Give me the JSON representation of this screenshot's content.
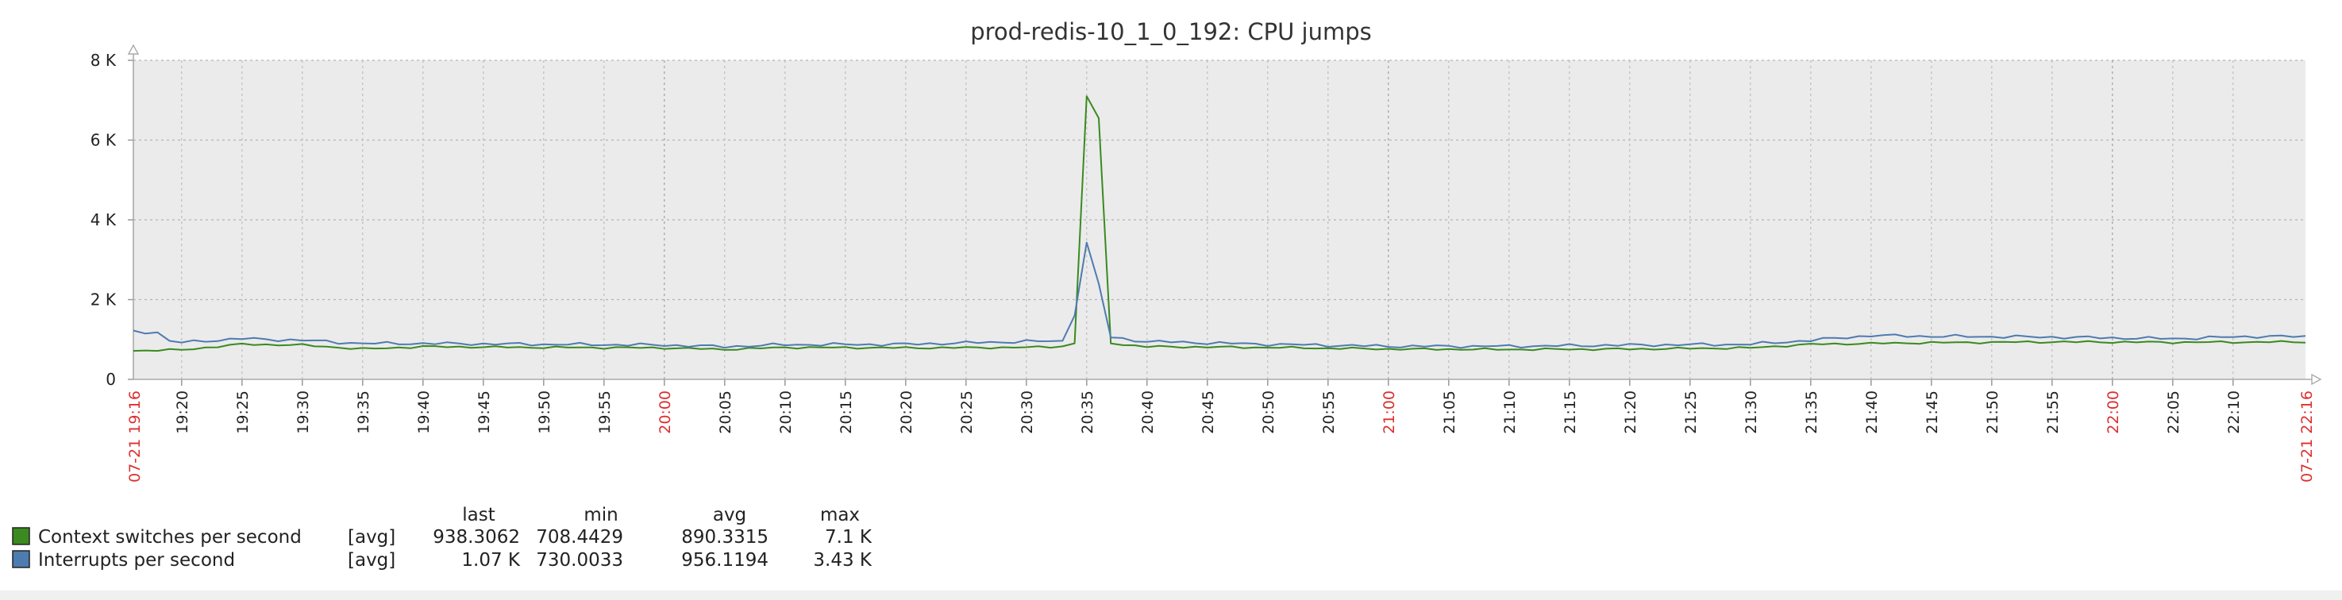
{
  "chart_data": {
    "type": "line",
    "title": "prod-redis-10_1_0_192: CPU jumps",
    "y_axis": {
      "min": 0,
      "max": 8000,
      "ticks": [
        {
          "value": 0,
          "label": "0"
        },
        {
          "value": 2000,
          "label": "2 K"
        },
        {
          "value": 4000,
          "label": "4 K"
        },
        {
          "value": 6000,
          "label": "6 K"
        },
        {
          "value": 8000,
          "label": "8 K"
        }
      ]
    },
    "x_axis": {
      "start": "07-21 19:16",
      "end": "07-21 22:16",
      "start_label": "07-21 19:16",
      "end_label": "07-21 22:16",
      "ticks": [
        {
          "time": "19:20",
          "label": "19:20",
          "highlight": false
        },
        {
          "time": "19:25",
          "label": "19:25",
          "highlight": false
        },
        {
          "time": "19:30",
          "label": "19:30",
          "highlight": false
        },
        {
          "time": "19:35",
          "label": "19:35",
          "highlight": false
        },
        {
          "time": "19:40",
          "label": "19:40",
          "highlight": false
        },
        {
          "time": "19:45",
          "label": "19:45",
          "highlight": false
        },
        {
          "time": "19:50",
          "label": "19:50",
          "highlight": false
        },
        {
          "time": "19:55",
          "label": "19:55",
          "highlight": false
        },
        {
          "time": "20:00",
          "label": "20:00",
          "highlight": true
        },
        {
          "time": "20:05",
          "label": "20:05",
          "highlight": false
        },
        {
          "time": "20:10",
          "label": "20:10",
          "highlight": false
        },
        {
          "time": "20:15",
          "label": "20:15",
          "highlight": false
        },
        {
          "time": "20:20",
          "label": "20:20",
          "highlight": false
        },
        {
          "time": "20:25",
          "label": "20:25",
          "highlight": false
        },
        {
          "time": "20:30",
          "label": "20:30",
          "highlight": false
        },
        {
          "time": "20:35",
          "label": "20:35",
          "highlight": false
        },
        {
          "time": "20:40",
          "label": "20:40",
          "highlight": false
        },
        {
          "time": "20:45",
          "label": "20:45",
          "highlight": false
        },
        {
          "time": "20:50",
          "label": "20:50",
          "highlight": false
        },
        {
          "time": "20:55",
          "label": "20:55",
          "highlight": false
        },
        {
          "time": "21:00",
          "label": "21:00",
          "highlight": true
        },
        {
          "time": "21:05",
          "label": "21:05",
          "highlight": false
        },
        {
          "time": "21:10",
          "label": "21:10",
          "highlight": false
        },
        {
          "time": "21:15",
          "label": "21:15",
          "highlight": false
        },
        {
          "time": "21:20",
          "label": "21:20",
          "highlight": false
        },
        {
          "time": "21:25",
          "label": "21:25",
          "highlight": false
        },
        {
          "time": "21:30",
          "label": "21:30",
          "highlight": false
        },
        {
          "time": "21:35",
          "label": "21:35",
          "highlight": false
        },
        {
          "time": "21:40",
          "label": "21:40",
          "highlight": false
        },
        {
          "time": "21:45",
          "label": "21:45",
          "highlight": false
        },
        {
          "time": "21:50",
          "label": "21:50",
          "highlight": false
        },
        {
          "time": "21:55",
          "label": "21:55",
          "highlight": false
        },
        {
          "time": "22:00",
          "label": "22:00",
          "highlight": true
        },
        {
          "time": "22:05",
          "label": "22:05",
          "highlight": false
        },
        {
          "time": "22:10",
          "label": "22:10",
          "highlight": false
        }
      ]
    },
    "grid": true,
    "series": [
      {
        "name": "Context switches per second",
        "color": "#3a8a1f",
        "keypoints": [
          {
            "t": "19:16",
            "v": 720
          },
          {
            "t": "19:20",
            "v": 740
          },
          {
            "t": "19:25",
            "v": 880
          },
          {
            "t": "19:30",
            "v": 860
          },
          {
            "t": "19:35",
            "v": 760
          },
          {
            "t": "19:40",
            "v": 820
          },
          {
            "t": "19:50",
            "v": 800
          },
          {
            "t": "20:00",
            "v": 790
          },
          {
            "t": "20:05",
            "v": 750
          },
          {
            "t": "20:10",
            "v": 800
          },
          {
            "t": "20:20",
            "v": 790
          },
          {
            "t": "20:30",
            "v": 800
          },
          {
            "t": "20:33",
            "v": 830
          },
          {
            "t": "20:34",
            "v": 900
          },
          {
            "t": "20:35",
            "v": 7100
          },
          {
            "t": "20:36",
            "v": 6550
          },
          {
            "t": "20:37",
            "v": 900
          },
          {
            "t": "20:40",
            "v": 820
          },
          {
            "t": "20:50",
            "v": 800
          },
          {
            "t": "21:00",
            "v": 760
          },
          {
            "t": "21:10",
            "v": 750
          },
          {
            "t": "21:20",
            "v": 760
          },
          {
            "t": "21:30",
            "v": 790
          },
          {
            "t": "21:35",
            "v": 880
          },
          {
            "t": "21:45",
            "v": 920
          },
          {
            "t": "21:55",
            "v": 940
          },
          {
            "t": "22:05",
            "v": 930
          },
          {
            "t": "22:16",
            "v": 938
          }
        ]
      },
      {
        "name": "Interrupts per second",
        "color": "#4e7bb0",
        "keypoints": [
          {
            "t": "19:16",
            "v": 1200
          },
          {
            "t": "19:18",
            "v": 1180
          },
          {
            "t": "19:19",
            "v": 950
          },
          {
            "t": "19:20",
            "v": 930
          },
          {
            "t": "19:25",
            "v": 1020
          },
          {
            "t": "19:30",
            "v": 980
          },
          {
            "t": "19:35",
            "v": 900
          },
          {
            "t": "19:40",
            "v": 900
          },
          {
            "t": "19:50",
            "v": 880
          },
          {
            "t": "20:00",
            "v": 860
          },
          {
            "t": "20:05",
            "v": 820
          },
          {
            "t": "20:10",
            "v": 870
          },
          {
            "t": "20:20",
            "v": 880
          },
          {
            "t": "20:30",
            "v": 950
          },
          {
            "t": "20:33",
            "v": 960
          },
          {
            "t": "20:34",
            "v": 1600
          },
          {
            "t": "20:35",
            "v": 3430
          },
          {
            "t": "20:36",
            "v": 2400
          },
          {
            "t": "20:37",
            "v": 1050
          },
          {
            "t": "20:40",
            "v": 950
          },
          {
            "t": "20:50",
            "v": 880
          },
          {
            "t": "21:00",
            "v": 830
          },
          {
            "t": "21:10",
            "v": 830
          },
          {
            "t": "21:20",
            "v": 860
          },
          {
            "t": "21:30",
            "v": 880
          },
          {
            "t": "21:35",
            "v": 980
          },
          {
            "t": "21:40",
            "v": 1100
          },
          {
            "t": "21:45",
            "v": 1080
          },
          {
            "t": "21:55",
            "v": 1060
          },
          {
            "t": "22:05",
            "v": 1020
          },
          {
            "t": "22:12",
            "v": 1080
          },
          {
            "t": "22:16",
            "v": 1070
          }
        ]
      }
    ],
    "legend": {
      "position": "bottom-left",
      "columns": [
        "last",
        "min",
        "avg",
        "max"
      ],
      "rows": [
        {
          "name": "Context switches per second",
          "func": "[avg]",
          "last": "938.3062",
          "min": "708.4429",
          "avg": "890.3315",
          "max": "7.1 K",
          "color": "#3a8a1f"
        },
        {
          "name": "Interrupts per second",
          "func": "[avg]",
          "last": "1.07 K",
          "min": "730.0033",
          "avg": "956.1194",
          "max": "3.43 K",
          "color": "#4e7bb0"
        }
      ]
    }
  }
}
